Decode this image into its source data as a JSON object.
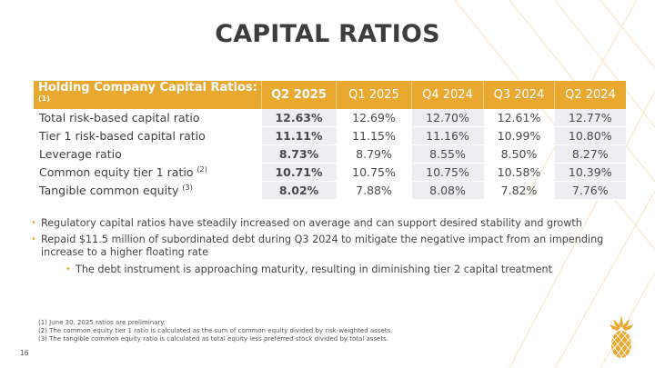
{
  "slide": {
    "title": "CAPITAL RATIOS",
    "page_number": "16"
  },
  "table": {
    "header_label": "Holding Company Capital Ratios:",
    "header_label_sup": "(1)",
    "columns": [
      "Q2 2025",
      "Q1 2025",
      "Q4 2024",
      "Q3 2024",
      "Q2 2024"
    ],
    "rows": [
      {
        "label": "Total risk-based capital ratio",
        "sup": "",
        "values": [
          "12.63%",
          "12.69%",
          "12.70%",
          "12.61%",
          "12.77%"
        ]
      },
      {
        "label": "Tier 1 risk-based capital ratio",
        "sup": "",
        "values": [
          "11.11%",
          "11.15%",
          "11.16%",
          "10.99%",
          "10.80%"
        ]
      },
      {
        "label": "Leverage ratio",
        "sup": "",
        "values": [
          "8.73%",
          "8.79%",
          "8.55%",
          "8.50%",
          "8.27%"
        ]
      },
      {
        "label": "Common equity tier 1 ratio",
        "sup": "(2)",
        "values": [
          "10.71%",
          "10.75%",
          "10.75%",
          "10.58%",
          "10.39%"
        ]
      },
      {
        "label": "Tangible common equity",
        "sup": "(3)",
        "values": [
          "8.02%",
          "7.88%",
          "8.08%",
          "7.82%",
          "7.76%"
        ]
      }
    ]
  },
  "bullets": [
    {
      "text": "Regulatory capital ratios have steadily increased on average and can support desired stability and growth",
      "level": 1
    },
    {
      "text": "Repaid $11.5 million of subordinated debt during Q3 2024 to mitigate the negative impact from an impending increase to a higher floating rate",
      "level": 1
    },
    {
      "text": "The debt instrument is approaching maturity, resulting in diminishing tier 2 capital treatment",
      "level": 2
    }
  ],
  "bullet_glyph": "•",
  "footnotes": [
    "(1) June 30, 2025 ratios are preliminary.",
    "(2) The common equity tier 1 ratio is calculated as the sum of common equity divided by risk-weighted assets.",
    "(3) The tangible common equity ratio is calculated as total equity less preferred stock divided by total assets."
  ],
  "logo": {
    "icon": "pineapple-icon"
  },
  "colors": {
    "accent": "#e9a830",
    "header_text": "#ffffff",
    "shaded_cell": "#eeedf1",
    "title": "#3d3d3f",
    "body_text": "#444444"
  }
}
